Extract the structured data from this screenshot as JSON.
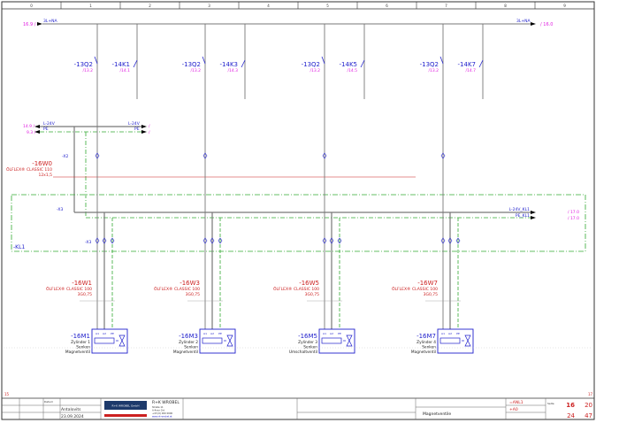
{
  "columns": [
    "0",
    "1",
    "2",
    "3",
    "4",
    "5",
    "6",
    "7",
    "8",
    "9"
  ],
  "colors": {
    "wire": "#777777",
    "pe": "#33aa33",
    "ref": "#e020e0",
    "device": "#2020cc",
    "cable": "#cc2020",
    "frame": "#333333"
  },
  "bus_3l": {
    "left_ref": "16.9 /",
    "left_label": "3L+NA",
    "right_label": "3L+NA",
    "right_ref": "/ 16.0"
  },
  "bus_24v": {
    "left_ref_l": "14.9 /",
    "left_ref_pe": "9.3 /",
    "l_label": "L-24V",
    "pe_label": "PE",
    "out_l_label": "L-24V",
    "out_pe_label": "PE",
    "out_ref_l": "/",
    "out_ref_pe": "/"
  },
  "terminal_x2": "-X2",
  "terminal_x3a": "-X3",
  "terminal_x3b": "-X3",
  "cable_w0": {
    "name": "-16W0",
    "type": "ÖLFLEX® CLASSIC 110",
    "size": "12x1,5"
  },
  "kl1": {
    "name": "-KL1",
    "l_label": "L-24V_KL1",
    "pe_label": "PE_KL1",
    "l_ref": "/ 17.0",
    "pe_ref": "/ 17.0"
  },
  "groups": [
    {
      "q": "-13Q2",
      "qref": "/13.2",
      "k": "-14K1",
      "kref": "/14.1",
      "w": "-16W1",
      "wtype": "ÖLFLEX® CLASSIC 100",
      "wsize": "3G0,75",
      "m": "-16M1",
      "mdesc": [
        "Zylinder 1",
        "Senken",
        "Magnetventil"
      ]
    },
    {
      "q": "-13Q2",
      "qref": "/13.2",
      "k": "-14K3",
      "kref": "/14.3",
      "w": "-16W3",
      "wtype": "ÖLFLEX® CLASSIC 100",
      "wsize": "3G0,75",
      "m": "-16M3",
      "mdesc": [
        "Zylinder 2",
        "Senken",
        "Magnetventil"
      ]
    },
    {
      "q": "-13Q2",
      "qref": "/13.2",
      "k": "-14K5",
      "kref": "/14.5",
      "w": "-16W5",
      "wtype": "ÖLFLEX® CLASSIC 100",
      "wsize": "3G0,75",
      "m": "-16M5",
      "mdesc": [
        "Zylinder 3",
        "Senken",
        "Umschaltventil"
      ]
    },
    {
      "q": "-13Q2",
      "qref": "/13.2",
      "k": "-14K7",
      "kref": "/14.7",
      "w": "-16W7",
      "wtype": "ÖLFLEX® CLASSIC 100",
      "wsize": "3G0,75",
      "m": "-16M7",
      "mdesc": [
        "Zylinder 4",
        "Senken",
        "Magnetventil"
      ]
    }
  ],
  "pins": [
    "A1",
    "A2",
    "PE"
  ],
  "title_block": {
    "date_label": "Datum",
    "author": "Antalovits",
    "date": "23.09.2024",
    "company": "R+K WROBEL",
    "company_lines": [
      "Straße 11",
      "A-4xxx Ort",
      "+43 (0) 000 0000",
      "www.rk-wrobel.at"
    ],
    "logo_text": "R+K WROBEL GmbH",
    "page_title": "Magnetventile",
    "plant": "=ANL1",
    "location": "+A0",
    "page_label": "Seite",
    "page": "16",
    "page_next": "20",
    "page_a": "24",
    "page_total": "47",
    "corner_left": "15",
    "corner_right": "17"
  }
}
